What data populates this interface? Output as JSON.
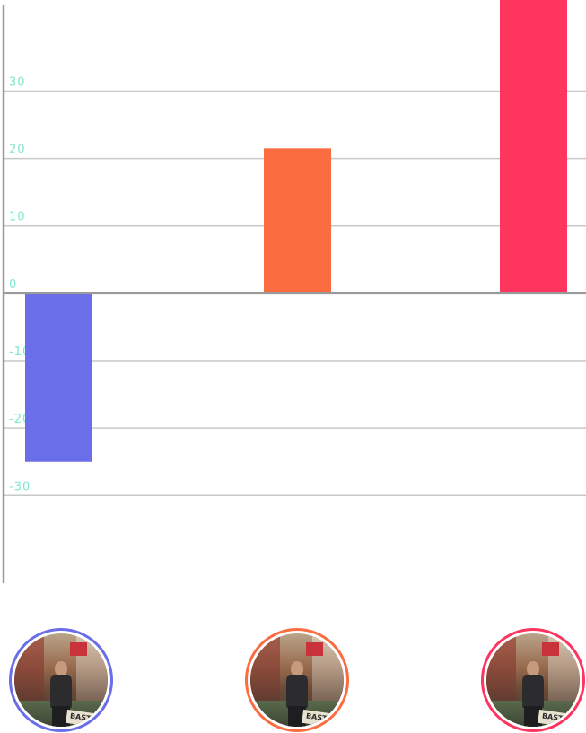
{
  "chart_data": {
    "type": "bar",
    "title": "",
    "xlabel": "",
    "ylabel": "",
    "categories": [
      "",
      "",
      ""
    ],
    "values": [
      -25,
      21.5,
      43.5
    ],
    "bar_colors": [
      "#6a6ee8",
      "#fb6d41",
      "#fd355f"
    ],
    "yticks": [
      -30,
      -20,
      -10,
      0,
      10,
      20,
      30
    ],
    "ytick_labels": [
      "-30",
      "-20",
      "-10",
      "0",
      "10",
      "20",
      "30"
    ],
    "ylim": [
      -43,
      43.5
    ],
    "grid": true,
    "legend": "none",
    "tick_label_color": "#7fe6cc",
    "axis_color": "#9a9a9a",
    "grid_color": "#c8c8c8"
  },
  "avatars": [
    {
      "border_color": "#6a6ee8",
      "icon": "profile-photo-icon",
      "sign_text": "BAST"
    },
    {
      "border_color": "#fb6d41",
      "icon": "profile-photo-icon",
      "sign_text": "BAST"
    },
    {
      "border_color": "#fd355f",
      "icon": "profile-photo-icon",
      "sign_text": "BAST"
    }
  ]
}
